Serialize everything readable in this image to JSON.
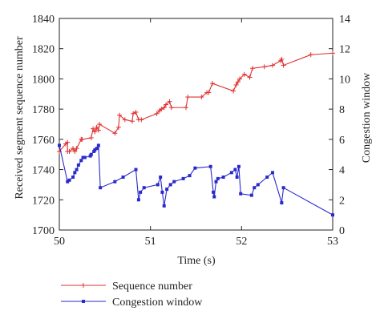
{
  "chart_data": {
    "type": "line",
    "title": "",
    "xlabel": "Time (s)",
    "ylabel_left": "Received segment sequence number",
    "ylabel_right": "Congestion window",
    "xlim": [
      50,
      53
    ],
    "ylim_left": [
      1700,
      1840
    ],
    "ylim_right": [
      0,
      14
    ],
    "xticks": [
      "50",
      "51",
      "52",
      "53"
    ],
    "yticks_left": [
      "1700",
      "1720",
      "1740",
      "1760",
      "1780",
      "1800",
      "1820",
      "1840"
    ],
    "yticks_right": [
      "0",
      "2",
      "4",
      "6",
      "8",
      "10",
      "12",
      "14"
    ],
    "grid": false,
    "legend_position": "bottom",
    "series": [
      {
        "name": "Sequence number",
        "axis": "left",
        "color": "#e03030",
        "marker": "plus",
        "x": [
          50.0,
          50.07,
          50.09,
          50.09,
          50.11,
          50.15,
          50.17,
          50.19,
          50.24,
          50.25,
          50.35,
          50.37,
          50.39,
          50.41,
          50.43,
          50.44,
          50.61,
          50.65,
          50.66,
          50.72,
          50.8,
          50.81,
          50.84,
          50.87,
          50.9,
          51.07,
          51.1,
          51.12,
          51.15,
          51.17,
          51.21,
          51.23,
          51.39,
          51.41,
          51.56,
          51.62,
          51.64,
          51.68,
          51.91,
          51.94,
          51.96,
          51.98,
          52.03,
          52.09,
          52.12,
          52.25,
          52.34,
          52.43,
          52.44,
          52.46,
          52.76,
          53.0
        ],
        "y": [
          1752,
          1757,
          1758,
          1752,
          1752,
          1754,
          1752,
          1754,
          1760,
          1760,
          1761,
          1767,
          1765,
          1768,
          1766,
          1770,
          1764,
          1768,
          1776,
          1773,
          1772,
          1777,
          1778,
          1773,
          1773,
          1777,
          1779,
          1780,
          1781,
          1783,
          1785,
          1781,
          1781,
          1788,
          1788,
          1791,
          1791,
          1797,
          1792,
          1796,
          1798,
          1800,
          1803,
          1801,
          1807,
          1808,
          1809,
          1812,
          1813,
          1809,
          1816,
          1817
        ]
      },
      {
        "name": "Congestion window",
        "axis": "right",
        "color": "#2a2acc",
        "marker": "square",
        "x": [
          50.0,
          50.09,
          50.11,
          50.15,
          50.17,
          50.19,
          50.21,
          50.24,
          50.26,
          50.28,
          50.34,
          50.35,
          50.38,
          50.39,
          50.41,
          50.43,
          50.45,
          50.61,
          50.7,
          50.84,
          50.87,
          50.89,
          50.93,
          51.08,
          51.11,
          51.13,
          51.15,
          51.18,
          51.22,
          51.26,
          51.36,
          51.43,
          51.49,
          51.66,
          51.69,
          51.7,
          51.72,
          51.74,
          51.8,
          51.89,
          51.93,
          51.95,
          51.97,
          51.99,
          52.11,
          52.14,
          52.18,
          52.28,
          52.34,
          52.44,
          52.46,
          53.0
        ],
        "y": [
          5.6,
          3.2,
          3.3,
          3.5,
          3.8,
          4.0,
          4.3,
          4.6,
          4.8,
          4.8,
          4.9,
          5.0,
          5.2,
          5.3,
          5.4,
          5.6,
          2.8,
          3.2,
          3.5,
          4.0,
          2.0,
          2.5,
          2.8,
          3.0,
          3.5,
          2.5,
          1.6,
          2.7,
          3.0,
          3.2,
          3.4,
          3.6,
          4.1,
          4.2,
          2.5,
          2.2,
          3.2,
          3.4,
          3.5,
          3.8,
          4.0,
          3.5,
          4.2,
          2.4,
          2.3,
          2.8,
          3.0,
          3.5,
          3.8,
          1.8,
          2.8,
          1.0
        ]
      }
    ]
  }
}
